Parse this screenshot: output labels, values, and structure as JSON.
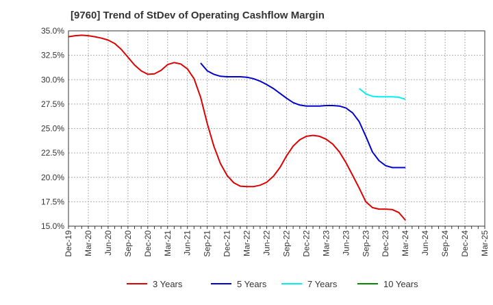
{
  "chart_data": {
    "type": "line",
    "title": "[9760]  Trend of StDev of Operating Cashflow Margin",
    "xlabel": "",
    "ylabel": "",
    "ylim": [
      15,
      35
    ],
    "y_ticks": [
      "15.0%",
      "17.5%",
      "20.0%",
      "22.5%",
      "25.0%",
      "27.5%",
      "30.0%",
      "32.5%",
      "35.0%"
    ],
    "y_tick_values": [
      15,
      17.5,
      20,
      22.5,
      25,
      27.5,
      30,
      32.5,
      35
    ],
    "x_ticks": [
      "Dec-19",
      "Mar-20",
      "Jun-20",
      "Sep-20",
      "Dec-20",
      "Mar-21",
      "Jun-21",
      "Sep-21",
      "Dec-21",
      "Mar-22",
      "Jun-22",
      "Sep-22",
      "Dec-22",
      "Mar-23",
      "Jun-23",
      "Sep-23",
      "Dec-23",
      "Mar-24",
      "Jun-24",
      "Sep-24",
      "Dec-24",
      "Mar-25"
    ],
    "x_range_months": [
      "2019-12",
      "2025-03"
    ],
    "grid": true,
    "legend_position": "bottom",
    "series": [
      {
        "name": "3 Years",
        "color": "#dd0000",
        "points": [
          [
            "2019-12",
            34.4
          ],
          [
            "2020-01",
            34.5
          ],
          [
            "2020-02",
            34.55
          ],
          [
            "2020-03",
            34.5
          ],
          [
            "2020-04",
            34.4
          ],
          [
            "2020-05",
            34.25
          ],
          [
            "2020-06",
            34.05
          ],
          [
            "2020-07",
            33.7
          ],
          [
            "2020-08",
            33.1
          ],
          [
            "2020-09",
            32.3
          ],
          [
            "2020-10",
            31.5
          ],
          [
            "2020-11",
            30.9
          ],
          [
            "2020-12",
            30.55
          ],
          [
            "2021-01",
            30.6
          ],
          [
            "2021-02",
            30.95
          ],
          [
            "2021-03",
            31.55
          ],
          [
            "2021-04",
            31.75
          ],
          [
            "2021-05",
            31.6
          ],
          [
            "2021-06",
            31.1
          ],
          [
            "2021-07",
            30.1
          ],
          [
            "2021-08",
            28.2
          ],
          [
            "2021-09",
            25.5
          ],
          [
            "2021-10",
            23.2
          ],
          [
            "2021-11",
            21.4
          ],
          [
            "2021-12",
            20.2
          ],
          [
            "2022-01",
            19.45
          ],
          [
            "2022-02",
            19.1
          ],
          [
            "2022-03",
            19.05
          ],
          [
            "2022-04",
            19.05
          ],
          [
            "2022-05",
            19.2
          ],
          [
            "2022-06",
            19.5
          ],
          [
            "2022-07",
            20.1
          ],
          [
            "2022-08",
            21.0
          ],
          [
            "2022-09",
            22.2
          ],
          [
            "2022-10",
            23.2
          ],
          [
            "2022-11",
            23.85
          ],
          [
            "2022-12",
            24.2
          ],
          [
            "2023-01",
            24.3
          ],
          [
            "2023-02",
            24.2
          ],
          [
            "2023-03",
            23.9
          ],
          [
            "2023-04",
            23.4
          ],
          [
            "2023-05",
            22.6
          ],
          [
            "2023-06",
            21.5
          ],
          [
            "2023-07",
            20.2
          ],
          [
            "2023-08",
            18.9
          ],
          [
            "2023-09",
            17.5
          ],
          [
            "2023-10",
            16.9
          ],
          [
            "2023-11",
            16.75
          ],
          [
            "2023-12",
            16.75
          ],
          [
            "2024-01",
            16.7
          ],
          [
            "2024-02",
            16.4
          ],
          [
            "2024-03",
            15.6
          ]
        ]
      },
      {
        "name": "5 Years",
        "color": "#0000cc",
        "points": [
          [
            "2021-08",
            31.7
          ],
          [
            "2021-09",
            30.9
          ],
          [
            "2021-10",
            30.55
          ],
          [
            "2021-11",
            30.35
          ],
          [
            "2021-12",
            30.3
          ],
          [
            "2022-01",
            30.3
          ],
          [
            "2022-02",
            30.3
          ],
          [
            "2022-03",
            30.25
          ],
          [
            "2022-04",
            30.1
          ],
          [
            "2022-05",
            29.85
          ],
          [
            "2022-06",
            29.5
          ],
          [
            "2022-07",
            29.1
          ],
          [
            "2022-08",
            28.6
          ],
          [
            "2022-09",
            28.1
          ],
          [
            "2022-10",
            27.65
          ],
          [
            "2022-11",
            27.4
          ],
          [
            "2022-12",
            27.3
          ],
          [
            "2023-01",
            27.3
          ],
          [
            "2023-02",
            27.3
          ],
          [
            "2023-03",
            27.35
          ],
          [
            "2023-04",
            27.35
          ],
          [
            "2023-05",
            27.3
          ],
          [
            "2023-06",
            27.1
          ],
          [
            "2023-07",
            26.6
          ],
          [
            "2023-08",
            25.7
          ],
          [
            "2023-09",
            24.2
          ],
          [
            "2023-10",
            22.6
          ],
          [
            "2023-11",
            21.7
          ],
          [
            "2023-12",
            21.2
          ],
          [
            "2024-01",
            21.0
          ],
          [
            "2024-02",
            21.0
          ],
          [
            "2024-03",
            21.0
          ]
        ]
      },
      {
        "name": "7 Years",
        "color": "#00eeee",
        "points": [
          [
            "2023-08",
            29.1
          ],
          [
            "2023-09",
            28.55
          ],
          [
            "2023-10",
            28.3
          ],
          [
            "2023-11",
            28.25
          ],
          [
            "2023-12",
            28.25
          ],
          [
            "2024-01",
            28.25
          ],
          [
            "2024-02",
            28.2
          ],
          [
            "2024-03",
            28.0
          ]
        ]
      },
      {
        "name": "10 Years",
        "color": "#008800",
        "points": []
      }
    ]
  }
}
